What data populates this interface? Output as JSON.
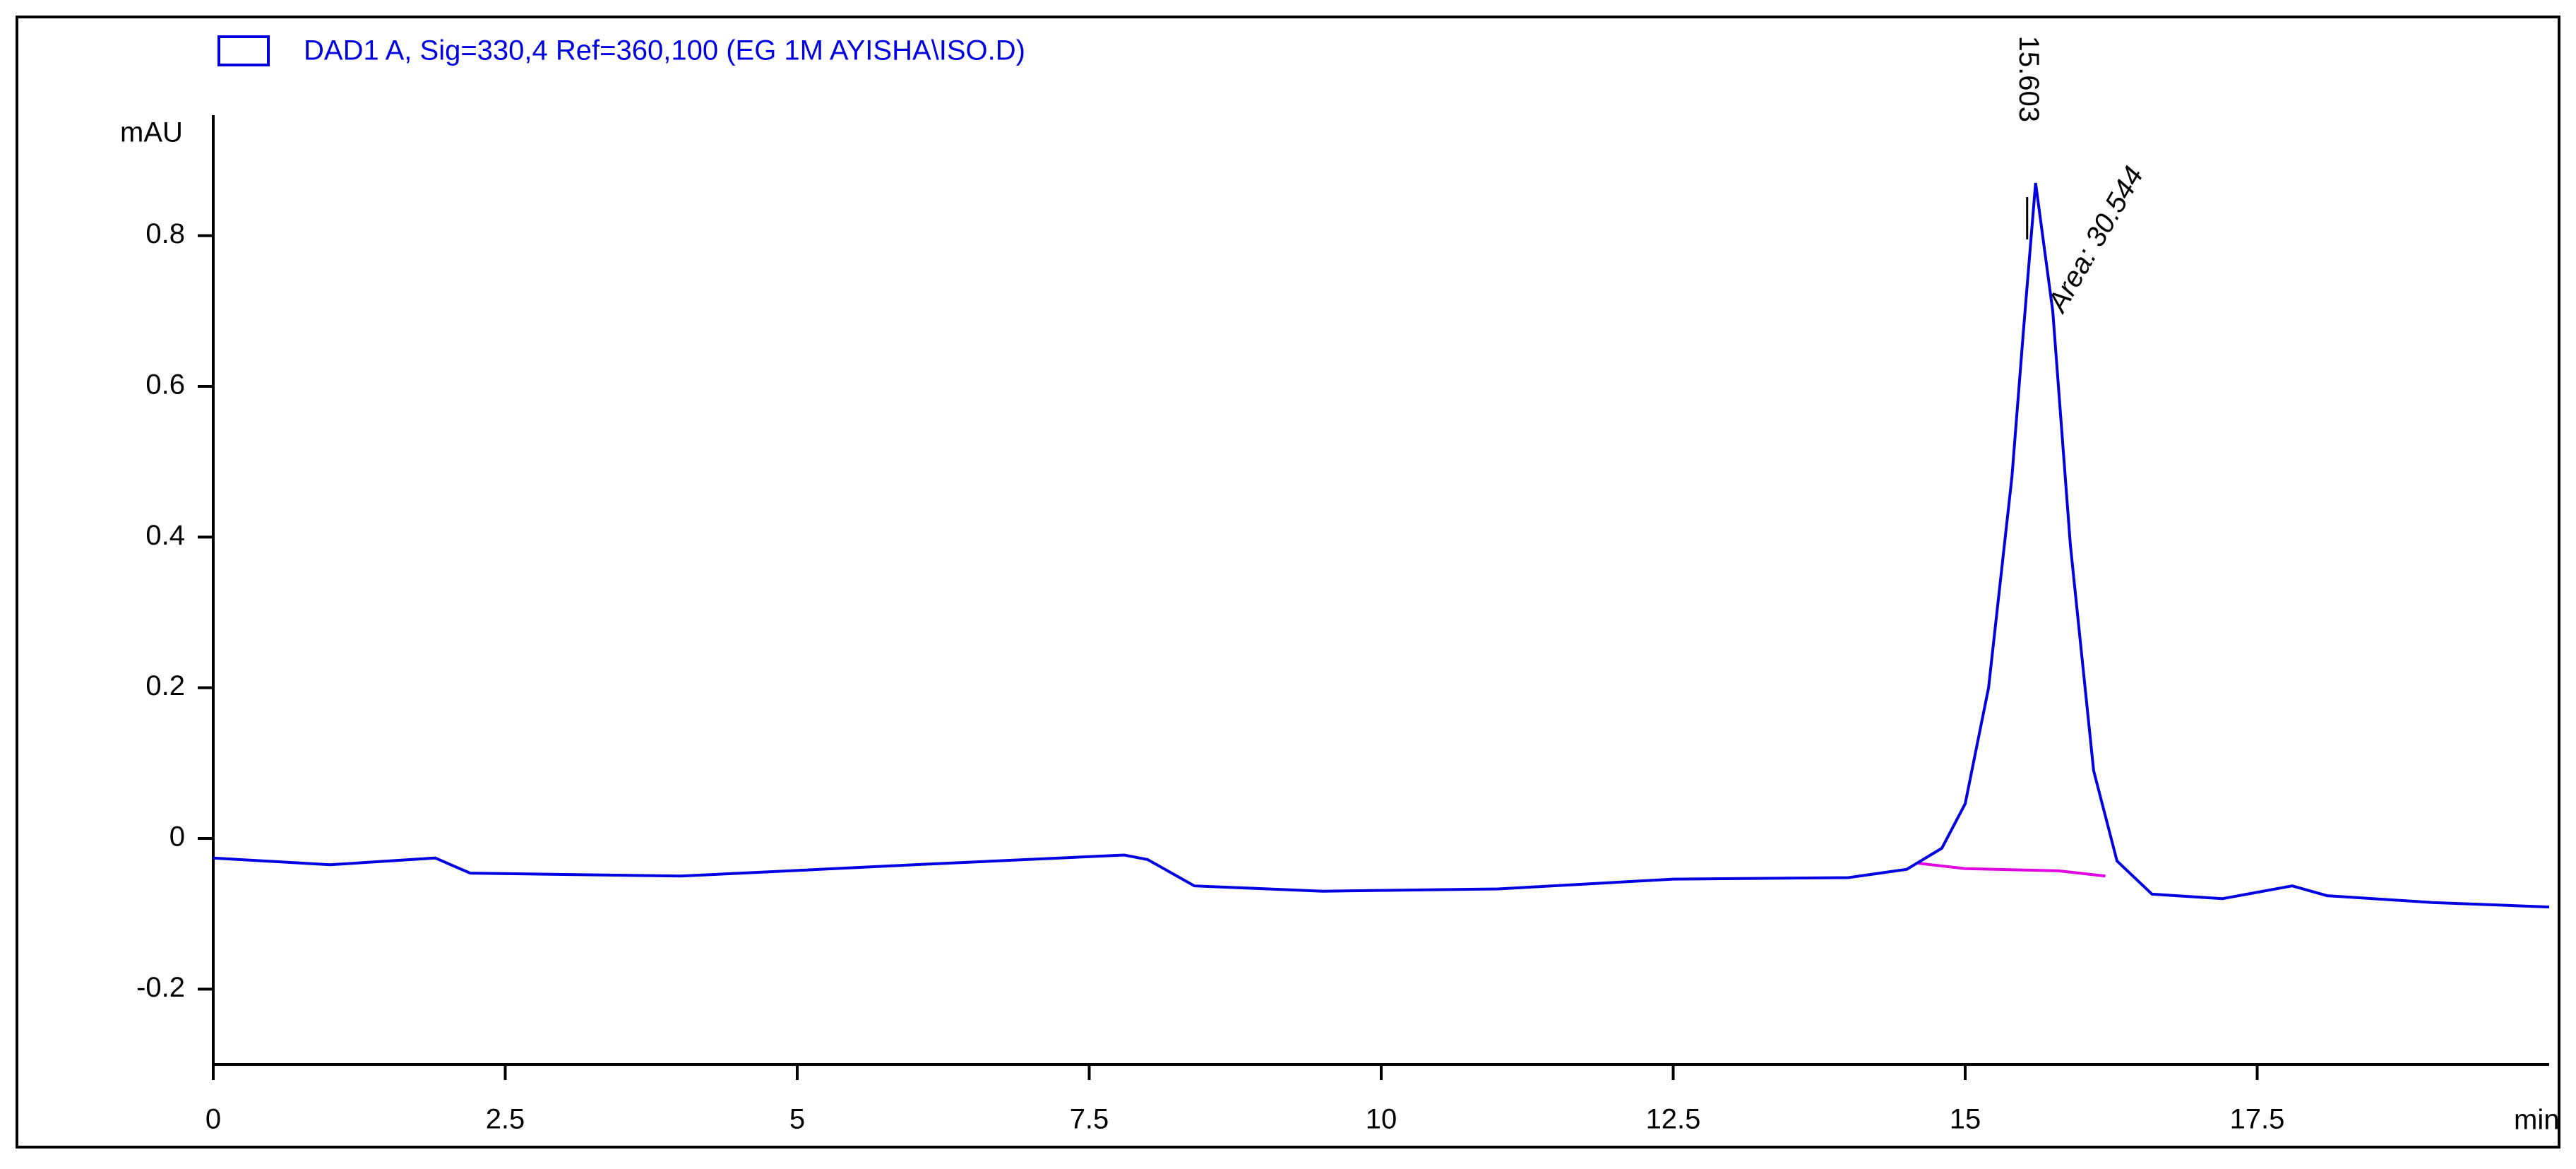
{
  "chart_data": {
    "type": "line",
    "legend": "DAD1 A, Sig=330,4 Ref=360,100 (EG 1M AYISHA\\ISO.D)",
    "y_label": "mAU",
    "x_label": "min",
    "peak_label": "15.603",
    "area_label": "Area: 30.544",
    "x": [
      0,
      1,
      1.9,
      2.2,
      4,
      6,
      7.8,
      8.0,
      8.4,
      9.5,
      11,
      12.5,
      14,
      14.5,
      14.8,
      15.0,
      15.2,
      15.4,
      15.5,
      15.603,
      15.75,
      15.9,
      16.1,
      16.3,
      16.6,
      17.2,
      17.8,
      18.1,
      19,
      20
    ],
    "series": [
      {
        "name": "DAD1 A, Sig=330,4 Ref=360,100 (EG 1M AYISHA\\ISO.D)",
        "color": "#0000e0",
        "values": [
          -0.026,
          -0.035,
          -0.026,
          -0.046,
          -0.05,
          -0.035,
          -0.022,
          -0.028,
          -0.063,
          -0.07,
          -0.067,
          -0.054,
          -0.052,
          -0.041,
          -0.013,
          0.046,
          0.2,
          0.48,
          0.676,
          0.87,
          0.7,
          0.39,
          0.09,
          -0.03,
          -0.074,
          -0.08,
          -0.063,
          -0.076,
          -0.085,
          -0.091
        ]
      }
    ],
    "baseline": {
      "color": "#e000e0",
      "x": [
        14.6,
        15.0,
        15.8,
        16.2
      ],
      "values": [
        -0.033,
        -0.04,
        -0.043,
        -0.05
      ]
    },
    "xlim": [
      0,
      20
    ],
    "ylim": [
      -0.3,
      0.96
    ],
    "xticks": [
      0,
      2.5,
      5,
      7.5,
      10,
      12.5,
      15,
      17.5
    ],
    "yticks": [
      -0.2,
      0,
      0.2,
      0.4,
      0.6,
      0.8
    ]
  }
}
